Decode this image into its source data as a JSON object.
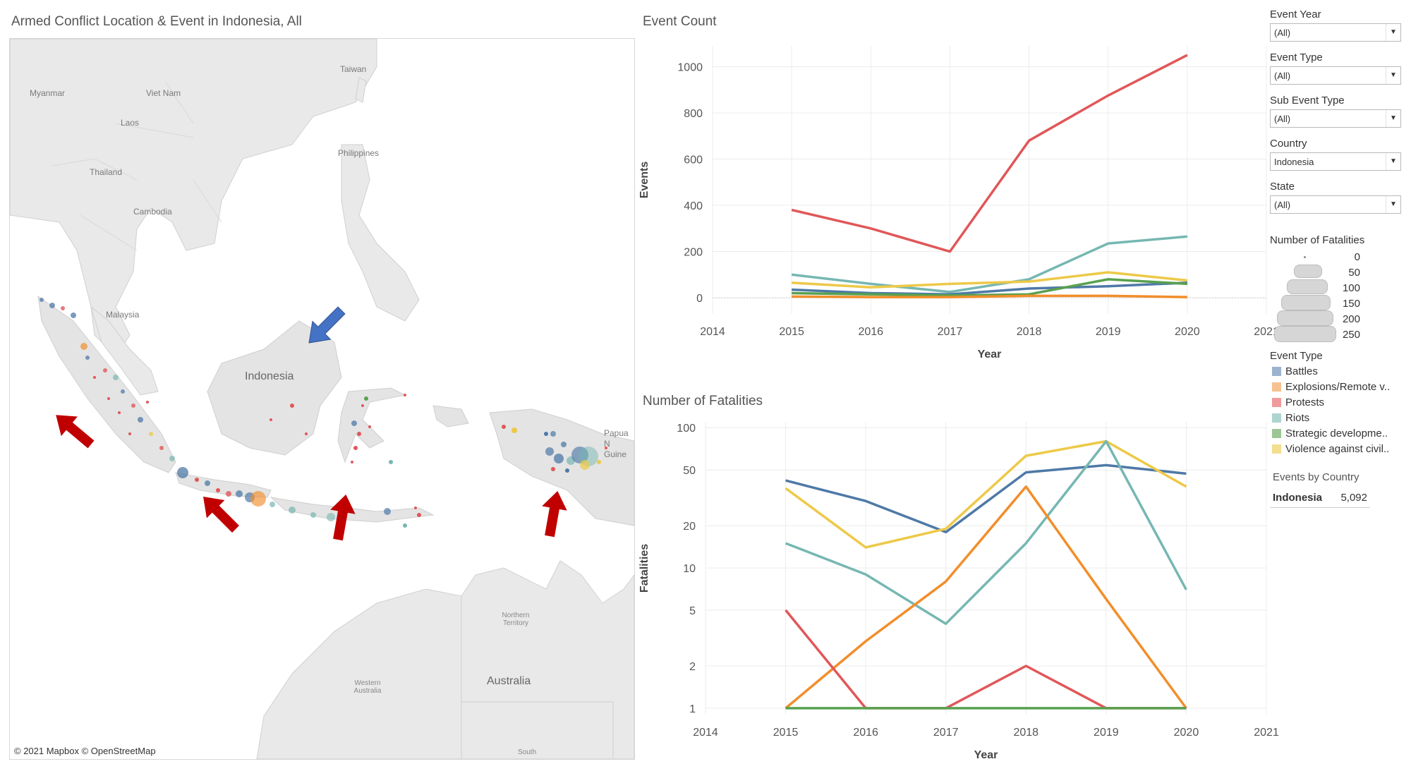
{
  "map": {
    "title": "Armed Conflict Location & Event in Indonesia, All",
    "labels": {
      "taiwan": "Taiwan",
      "myanmar": "Myanmar",
      "vietnam": "Viet Nam",
      "laos": "Laos",
      "thailand": "Thailand",
      "cambodia": "Cambodia",
      "philippines": "Philippines",
      "malaysia": "Malaysia",
      "indonesia": "Indonesia",
      "papua": "Papua N Guine",
      "northern_territory": "Northern Territory",
      "western_australia": "Western Australia",
      "australia": "Australia",
      "south": "South"
    },
    "attribution": "© 2021 Mapbox © OpenStreetMap",
    "arrow_colors": {
      "red": "#c00000",
      "blue": "#4472c4"
    }
  },
  "colors": {
    "Battles": "#4e79a7",
    "Explosions": "#f28e2b",
    "Protests": "#e15759",
    "Riots": "#76b7b2",
    "Strategic": "#59a14f",
    "Violence": "#edc948"
  },
  "chart_data": [
    {
      "type": "line",
      "title": "Event Count",
      "xlabel": "Year",
      "ylabel": "Events",
      "x_ticks": [
        "2014",
        "2015",
        "2016",
        "2017",
        "2018",
        "2019",
        "2020",
        "2021"
      ],
      "y_ticks": [
        "0",
        "200",
        "400",
        "600",
        "800",
        "1000"
      ],
      "xlim": [
        2014,
        2021
      ],
      "ylim": [
        -70,
        1090
      ],
      "grid": true,
      "x": [
        2015,
        2016,
        2017,
        2018,
        2019,
        2020
      ],
      "series": [
        {
          "key": "Protests",
          "values": [
            380,
            300,
            200,
            680,
            875,
            1050
          ]
        },
        {
          "key": "Riots",
          "values": [
            100,
            60,
            25,
            80,
            235,
            265
          ]
        },
        {
          "key": "Violence",
          "values": [
            65,
            45,
            60,
            70,
            110,
            75
          ]
        },
        {
          "key": "Battles",
          "values": [
            35,
            20,
            15,
            40,
            50,
            65
          ]
        },
        {
          "key": "Strategic",
          "values": [
            20,
            15,
            10,
            15,
            80,
            60
          ]
        },
        {
          "key": "Explosions",
          "values": [
            5,
            3,
            3,
            8,
            8,
            3
          ]
        }
      ]
    },
    {
      "type": "line",
      "title": "Number of Fatalities",
      "xlabel": "Year",
      "ylabel": "Fatalities",
      "yscale": "log",
      "x_ticks": [
        "2014",
        "2015",
        "2016",
        "2017",
        "2018",
        "2019",
        "2020",
        "2021"
      ],
      "y_ticks": [
        "1",
        "2",
        "5",
        "10",
        "20",
        "50",
        "100"
      ],
      "xlim": [
        2014,
        2021
      ],
      "ylim": [
        0.9,
        110
      ],
      "grid": true,
      "x": [
        2015,
        2016,
        2017,
        2018,
        2019,
        2020
      ],
      "series": [
        {
          "key": "Battles",
          "values": [
            42,
            30,
            18,
            48,
            54,
            47
          ]
        },
        {
          "key": "Violence",
          "values": [
            37,
            14,
            19,
            63,
            80,
            38
          ]
        },
        {
          "key": "Riots",
          "values": [
            15,
            9,
            4,
            15,
            80,
            7
          ]
        },
        {
          "key": "Explosions",
          "values": [
            1,
            3,
            8,
            38,
            6,
            1
          ]
        },
        {
          "key": "Protests",
          "values": [
            5,
            1,
            1,
            2,
            1,
            1
          ]
        },
        {
          "key": "Strategic",
          "values": [
            1,
            1,
            1,
            1,
            1,
            1
          ]
        }
      ]
    }
  ],
  "filters": [
    {
      "label": "Event Year",
      "value": "(All)"
    },
    {
      "label": "Event Type",
      "value": "(All)"
    },
    {
      "label": "Sub Event Type",
      "value": "(All)"
    },
    {
      "label": "Country",
      "value": "Indonesia"
    },
    {
      "label": "State",
      "value": "(All)"
    }
  ],
  "size_legend": {
    "title": "Number of Fatalities",
    "values": [
      "0",
      "50",
      "100",
      "150",
      "200",
      "250"
    ]
  },
  "color_legend": {
    "title": "Event Type",
    "items": [
      "Battles",
      "Explosions/Remote v..",
      "Protests",
      "Riots",
      "Strategic developme..",
      "Violence against civil.."
    ],
    "swatch_colors": [
      "#9bb3cf",
      "#f7c28f",
      "#ef9a9b",
      "#acd5d2",
      "#9cc795",
      "#f3dd8f"
    ]
  },
  "country_table": {
    "header": "Events by Country",
    "rows": [
      {
        "country": "Indonesia",
        "events": "5,092"
      }
    ]
  }
}
